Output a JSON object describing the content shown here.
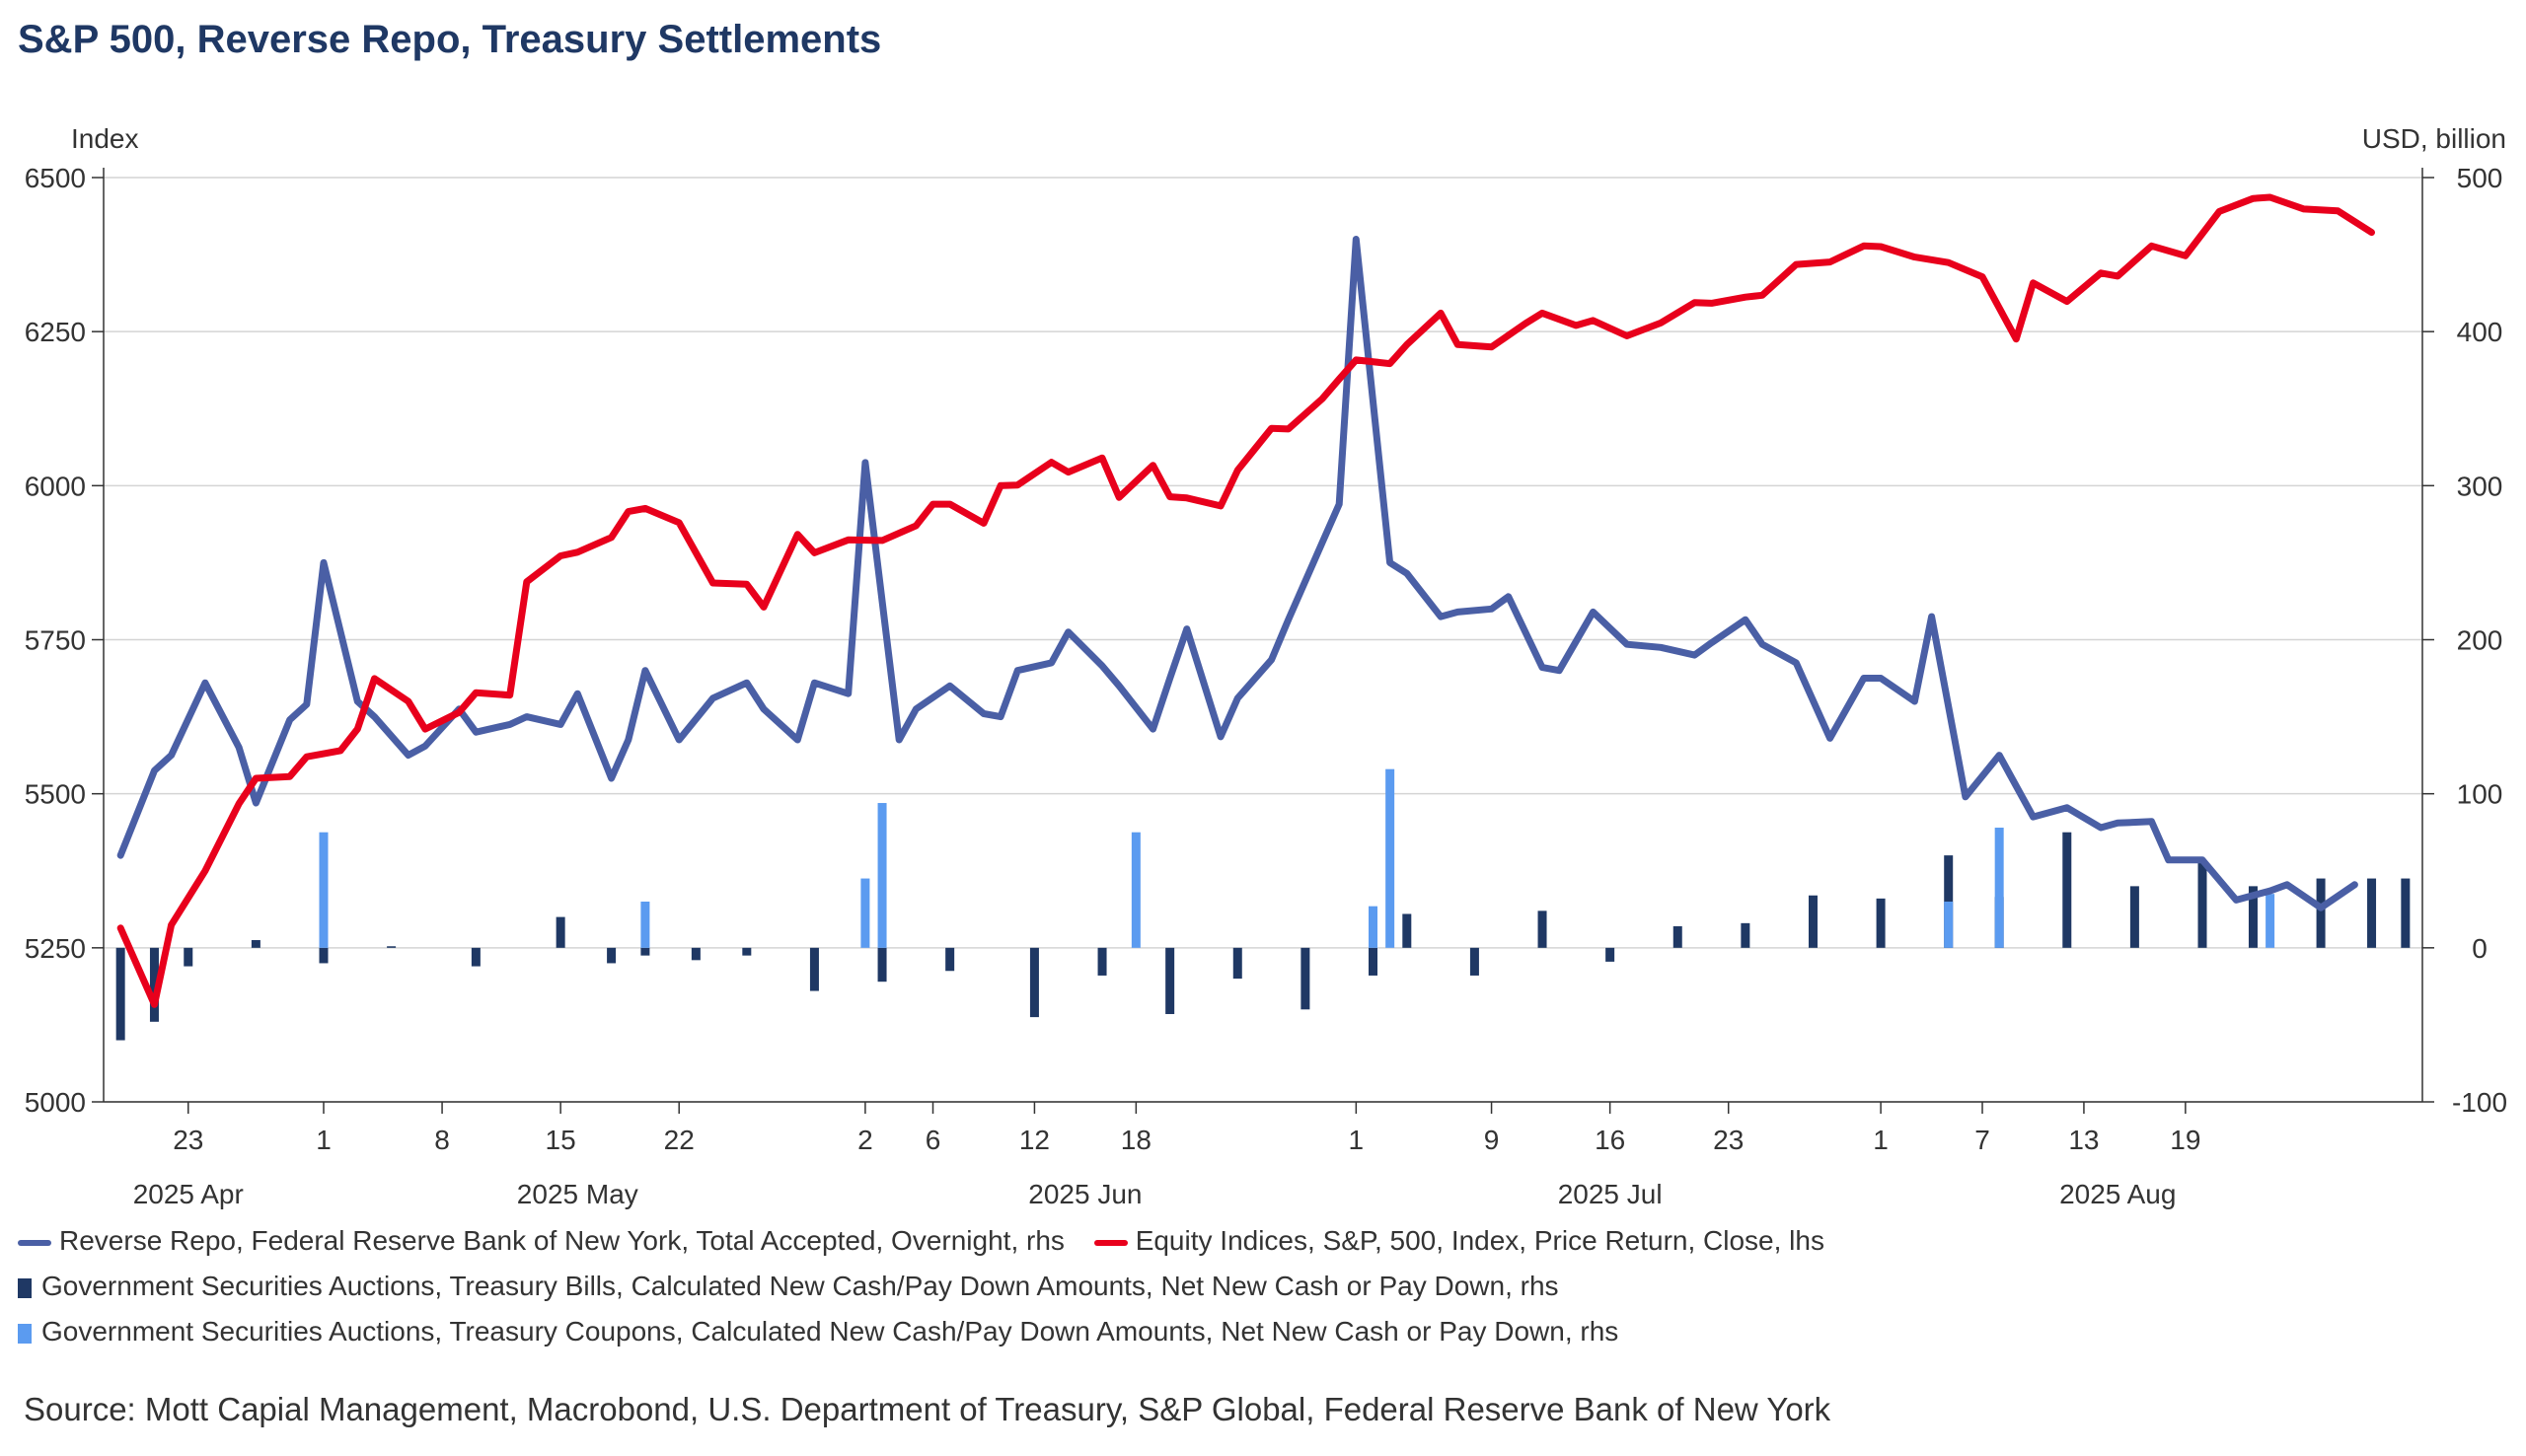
{
  "chart_data": {
    "type": "line+bar",
    "title": "S&P 500, Reverse Repo, Treasury Settlements",
    "left_axis": {
      "label": "Index",
      "ticks": [
        "6500",
        "6250",
        "6000",
        "5750",
        "5500",
        "5250",
        "5000"
      ],
      "range": [
        5000,
        6500
      ]
    },
    "right_axis": {
      "label": "USD, billion",
      "ticks": [
        "500",
        "400",
        "300",
        "200",
        "100",
        "0",
        "-100"
      ],
      "range": [
        -100,
        500
      ]
    },
    "x_ticks": [
      {
        "label": "23",
        "day": 2
      },
      {
        "label": "1",
        "day": 10
      },
      {
        "label": "8",
        "day": 17
      },
      {
        "label": "15",
        "day": 24
      },
      {
        "label": "22",
        "day": 31
      },
      {
        "label": "2",
        "day": 42
      },
      {
        "label": "6",
        "day": 46
      },
      {
        "label": "12",
        "day": 52
      },
      {
        "label": "18",
        "day": 58
      },
      {
        "label": "1",
        "day": 71
      },
      {
        "label": "9",
        "day": 79
      },
      {
        "label": "16",
        "day": 86
      },
      {
        "label": "23",
        "day": 93
      },
      {
        "label": "1",
        "day": 102
      },
      {
        "label": "7",
        "day": 108
      },
      {
        "label": "13",
        "day": 114
      },
      {
        "label": "19",
        "day": 120
      }
    ],
    "month_labels": [
      {
        "label": "2025 Apr",
        "day": 2
      },
      {
        "label": "2025 May",
        "day": 25
      },
      {
        "label": "2025 Jun",
        "day": 55
      },
      {
        "label": "2025 Jul",
        "day": 86
      },
      {
        "label": "2025 Aug",
        "day": 116
      }
    ],
    "series_sp500": {
      "name": "Equity Indices, S&P, 500, Index, Price Return, Close, lhs",
      "color": "#e8001c",
      "points": [
        [
          -2,
          5282
        ],
        [
          0,
          5158
        ],
        [
          1,
          5287
        ],
        [
          3,
          5375
        ],
        [
          5,
          5484
        ],
        [
          6,
          5525
        ],
        [
          8,
          5528
        ],
        [
          9,
          5560
        ],
        [
          11,
          5570
        ],
        [
          12,
          5605
        ],
        [
          13,
          5687
        ],
        [
          15,
          5650
        ],
        [
          16,
          5605
        ],
        [
          18,
          5632
        ],
        [
          19,
          5664
        ],
        [
          21,
          5660
        ],
        [
          22,
          5844
        ],
        [
          24,
          5886
        ],
        [
          25,
          5892
        ],
        [
          27,
          5916
        ],
        [
          28,
          5958
        ],
        [
          29,
          5963
        ],
        [
          31,
          5940
        ],
        [
          33,
          5842
        ],
        [
          35,
          5840
        ],
        [
          36,
          5803
        ],
        [
          38,
          5921
        ],
        [
          39,
          5891
        ],
        [
          41,
          5912
        ],
        [
          43,
          5911
        ],
        [
          45,
          5935
        ],
        [
          46,
          5970
        ],
        [
          47,
          5970
        ],
        [
          49,
          5939
        ],
        [
          50,
          6000
        ],
        [
          51,
          6001
        ],
        [
          53,
          6038
        ],
        [
          54,
          6022
        ],
        [
          56,
          6045
        ],
        [
          57,
          5981
        ],
        [
          59,
          6033
        ],
        [
          60,
          5982
        ],
        [
          61,
          5980
        ],
        [
          63,
          5967
        ],
        [
          64,
          6025
        ],
        [
          66,
          6093
        ],
        [
          67,
          6092
        ],
        [
          69,
          6141
        ],
        [
          70,
          6173
        ],
        [
          71,
          6204
        ],
        [
          73,
          6198
        ],
        [
          74,
          6229
        ],
        [
          76,
          6280
        ],
        [
          77,
          6229
        ],
        [
          79,
          6225
        ],
        [
          81,
          6263
        ],
        [
          82,
          6280
        ],
        [
          84,
          6260
        ],
        [
          85,
          6268
        ],
        [
          87,
          6243
        ],
        [
          89,
          6264
        ],
        [
          91,
          6297
        ],
        [
          92,
          6296
        ],
        [
          94,
          6306
        ],
        [
          95,
          6309
        ],
        [
          97,
          6359
        ],
        [
          99,
          6363
        ],
        [
          101,
          6389
        ],
        [
          102,
          6388
        ],
        [
          104,
          6371
        ],
        [
          106,
          6362
        ],
        [
          108,
          6339
        ],
        [
          110,
          6238
        ],
        [
          111,
          6329
        ],
        [
          113,
          6299
        ],
        [
          115,
          6345
        ],
        [
          116,
          6340
        ],
        [
          118,
          6389
        ],
        [
          120,
          6373
        ],
        [
          122,
          6445
        ],
        [
          124,
          6466
        ],
        [
          125,
          6468
        ],
        [
          127,
          6449
        ],
        [
          129,
          6446
        ],
        [
          131,
          6411
        ]
      ]
    },
    "series_rrp": {
      "name": "Reverse Repo, Federal Reserve Bank of New York, Total Accepted, Overnight, rhs",
      "color": "#4a5fa5",
      "points": [
        [
          -2,
          60
        ],
        [
          0,
          115
        ],
        [
          1,
          125
        ],
        [
          3,
          172
        ],
        [
          5,
          130
        ],
        [
          6,
          94
        ],
        [
          8,
          148
        ],
        [
          9,
          158
        ],
        [
          10,
          250
        ],
        [
          12,
          160
        ],
        [
          13,
          150
        ],
        [
          15,
          125
        ],
        [
          16,
          131
        ],
        [
          18,
          155
        ],
        [
          19,
          140
        ],
        [
          21,
          145
        ],
        [
          22,
          150
        ],
        [
          24,
          145
        ],
        [
          25,
          165
        ],
        [
          27,
          110
        ],
        [
          28,
          135
        ],
        [
          29,
          180
        ],
        [
          31,
          135
        ],
        [
          33,
          162
        ],
        [
          35,
          172
        ],
        [
          36,
          155
        ],
        [
          38,
          135
        ],
        [
          39,
          172
        ],
        [
          41,
          165
        ],
        [
          42,
          315
        ],
        [
          44,
          135
        ],
        [
          45,
          155
        ],
        [
          47,
          170
        ],
        [
          49,
          152
        ],
        [
          50,
          150
        ],
        [
          51,
          180
        ],
        [
          53,
          185
        ],
        [
          54,
          205
        ],
        [
          56,
          183
        ],
        [
          57,
          170
        ],
        [
          59,
          142
        ],
        [
          60,
          175
        ],
        [
          61,
          207
        ],
        [
          63,
          137
        ],
        [
          64,
          162
        ],
        [
          66,
          187
        ],
        [
          67,
          213
        ],
        [
          69,
          263
        ],
        [
          70,
          288
        ],
        [
          71,
          460
        ],
        [
          73,
          250
        ],
        [
          74,
          243
        ],
        [
          76,
          215
        ],
        [
          77,
          218
        ],
        [
          79,
          220
        ],
        [
          80,
          228
        ],
        [
          82,
          182
        ],
        [
          83,
          180
        ],
        [
          85,
          218
        ],
        [
          87,
          197
        ],
        [
          89,
          195
        ],
        [
          91,
          190
        ],
        [
          92,
          198
        ],
        [
          94,
          213
        ],
        [
          95,
          197
        ],
        [
          97,
          185
        ],
        [
          99,
          136
        ],
        [
          101,
          175
        ],
        [
          102,
          175
        ],
        [
          104,
          160
        ],
        [
          105,
          215
        ],
        [
          107,
          98
        ],
        [
          109,
          125
        ],
        [
          111,
          85
        ],
        [
          113,
          91
        ],
        [
          115,
          78
        ],
        [
          116,
          81
        ],
        [
          118,
          82
        ],
        [
          119,
          57
        ],
        [
          121,
          57
        ],
        [
          123,
          31
        ],
        [
          125,
          37
        ],
        [
          126,
          41
        ],
        [
          128,
          26
        ],
        [
          130,
          41
        ]
      ]
    },
    "series_bills": {
      "name": "Government Securities Auctions, Treasury Bills, Calculated New Cash/Pay Down Amounts, Net New Cash or Pay Down, rhs",
      "color": "#1f3864",
      "points": [
        [
          -2,
          -60
        ],
        [
          0,
          -48
        ],
        [
          2,
          -12
        ],
        [
          6,
          5
        ],
        [
          10,
          -10
        ],
        [
          14,
          1
        ],
        [
          19,
          -12
        ],
        [
          24,
          20
        ],
        [
          27,
          -10
        ],
        [
          29,
          -5
        ],
        [
          32,
          -8
        ],
        [
          35,
          -5
        ],
        [
          39,
          -28
        ],
        [
          43,
          -22
        ],
        [
          47,
          -15
        ],
        [
          52,
          -45
        ],
        [
          56,
          -18
        ],
        [
          60,
          -43
        ],
        [
          64,
          -20
        ],
        [
          68,
          -40
        ],
        [
          72,
          -18
        ],
        [
          74,
          22
        ],
        [
          78,
          -18
        ],
        [
          82,
          24
        ],
        [
          86,
          -9
        ],
        [
          90,
          14
        ],
        [
          94,
          16
        ],
        [
          98,
          34
        ],
        [
          102,
          32
        ],
        [
          106,
          60
        ],
        [
          109,
          33
        ],
        [
          113,
          75
        ],
        [
          117,
          40
        ],
        [
          121,
          55
        ],
        [
          124,
          40
        ],
        [
          128,
          45
        ],
        [
          131,
          45
        ],
        [
          133,
          45
        ]
      ]
    },
    "series_coupons": {
      "name": "Government Securities Auctions, Treasury Coupons, Calculated New Cash/Pay Down Amounts, Net New Cash or Pay Down, rhs",
      "color": "#5b9bf0",
      "points": [
        [
          10,
          75
        ],
        [
          29,
          30
        ],
        [
          42,
          45
        ],
        [
          43,
          94
        ],
        [
          58,
          75
        ],
        [
          72,
          27
        ],
        [
          73,
          116
        ],
        [
          106,
          30
        ],
        [
          109,
          78
        ],
        [
          125,
          35
        ]
      ]
    }
  },
  "legend": {
    "rrp": "Reverse Repo, Federal Reserve Bank of New York, Total Accepted, Overnight, rhs",
    "sp500": "Equity Indices, S&P, 500, Index, Price Return, Close, lhs",
    "bills": "Government Securities Auctions, Treasury Bills, Calculated New Cash/Pay Down Amounts, Net New Cash or Pay Down, rhs",
    "coupons": "Government Securities Auctions, Treasury Coupons, Calculated New Cash/Pay Down Amounts, Net New Cash or Pay Down, rhs"
  },
  "source": "Source: Mott Capial Management, Macrobond, U.S. Department of Treasury, S&P Global, Federal Reserve Bank of New York"
}
